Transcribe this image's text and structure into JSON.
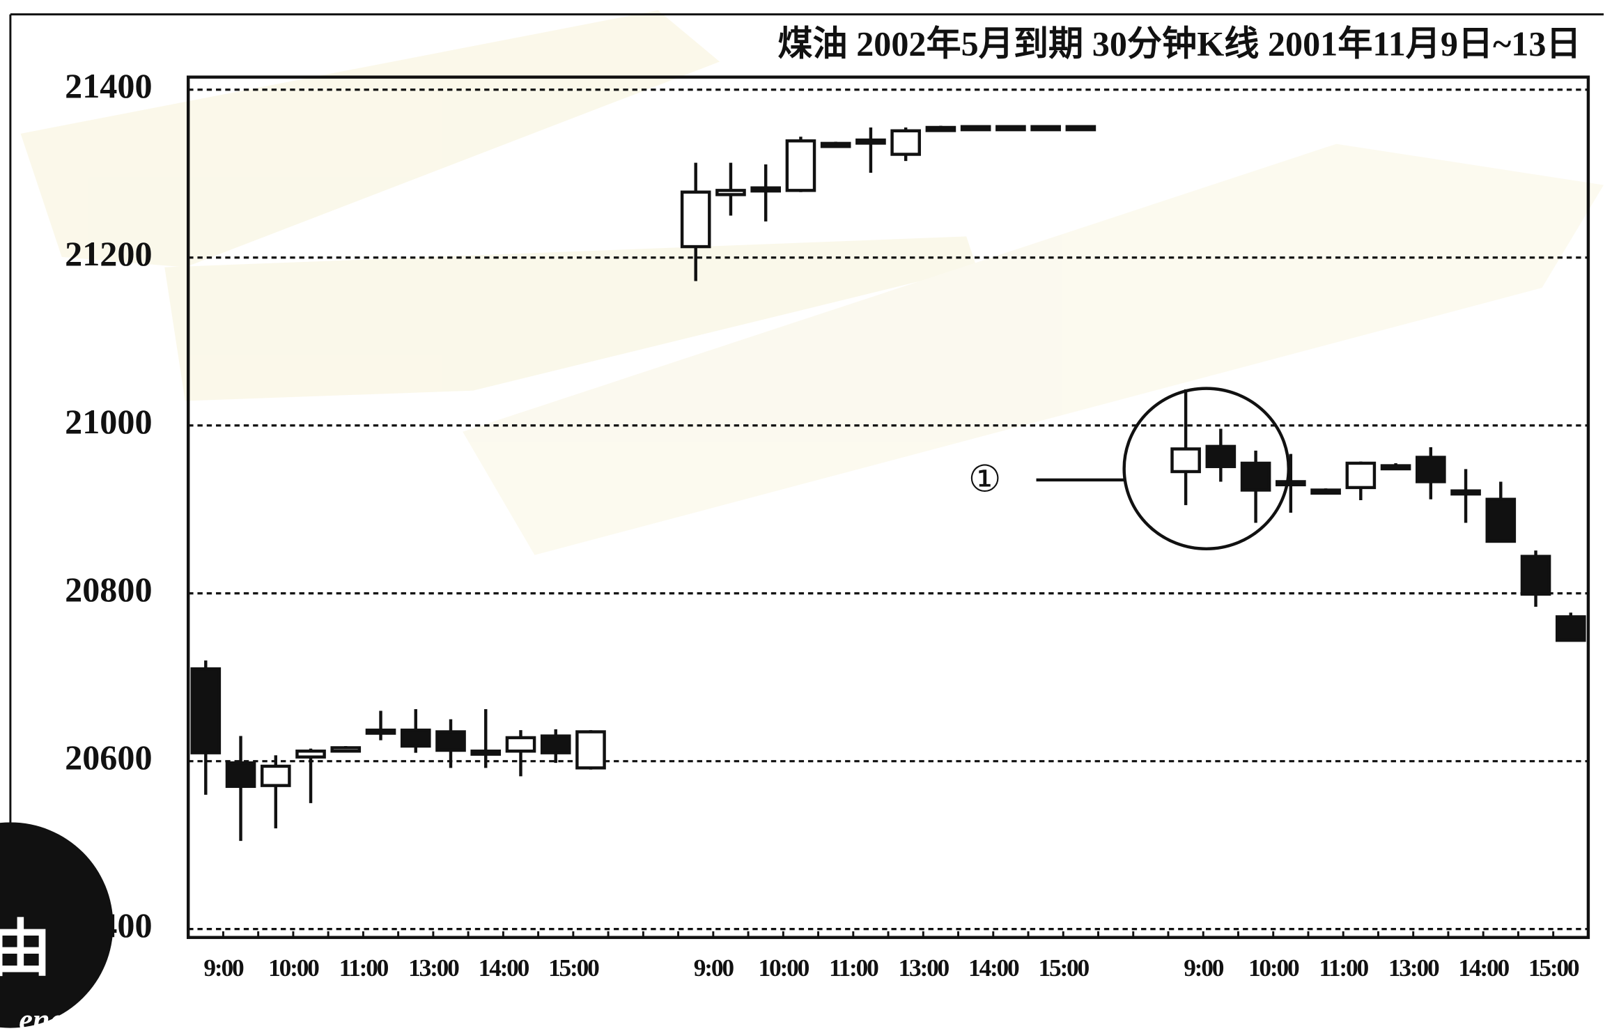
{
  "chart_data": {
    "type": "candlestick",
    "title": "煤油 2002年5月到期 30分钟K线 2001年11月9日~13日",
    "categories": [
      "9:00",
      null,
      "10:00",
      null,
      "11:00",
      null,
      "13:00",
      null,
      "14:00",
      null,
      "15:00",
      null,
      null,
      null,
      "9:00",
      null,
      "10:00",
      null,
      "11:00",
      null,
      "13:00",
      null,
      "14:00",
      null,
      "15:00",
      null,
      null,
      null,
      "9:00",
      null,
      "10:00",
      null,
      "11:00",
      null,
      "13:00",
      null,
      "14:00",
      null,
      "15:00",
      null
    ],
    "open": [
      20710,
      20598,
      20571,
      20605,
      20612,
      20635,
      20637,
      20635,
      20612,
      20612,
      20630,
      20592,
      null,
      null,
      21213,
      21275,
      21280,
      21280,
      21335,
      21338,
      21323,
      21354,
      21356,
      21356,
      21356,
      21356,
      null,
      null,
      20945,
      20975,
      20955,
      20933,
      20923,
      20926,
      20952,
      20962,
      20922,
      20912,
      20844,
      20772
    ],
    "high": [
      20720,
      20630,
      20607,
      20615,
      20618,
      20660,
      20662,
      20650,
      20662,
      20637,
      20638,
      20637,
      null,
      null,
      21313,
      21313,
      21311,
      21344,
      21338,
      21355,
      21355,
      21357,
      21357,
      21357,
      21357,
      21357,
      null,
      null,
      21043,
      20996,
      20970,
      20966,
      20925,
      20957,
      20955,
      20974,
      20948,
      20933,
      20851,
      20777
    ],
    "low": [
      20560,
      20505,
      20520,
      20550,
      20612,
      20625,
      20610,
      20592,
      20592,
      20582,
      20598,
      20590,
      null,
      null,
      21172,
      21250,
      21243,
      21278,
      21333,
      21301,
      21315,
      21353,
      21355,
      21355,
      21355,
      21355,
      null,
      null,
      20905,
      20933,
      20884,
      20896,
      20921,
      20911,
      20948,
      20912,
      20884,
      20862,
      20784,
      20744
    ],
    "close": [
      20610,
      20570,
      20594,
      20612,
      20616,
      20637,
      20618,
      20613,
      20610,
      20628,
      20610,
      20635,
      null,
      null,
      21278,
      21280,
      21283,
      21339,
      21336,
      21340,
      21351,
      21355,
      21356,
      21356,
      21356,
      21356,
      null,
      null,
      20972,
      20951,
      20923,
      20932,
      20923,
      20955,
      20951,
      20933,
      20920,
      20862,
      20799,
      20744
    ],
    "up_color": "#ffffff",
    "down_color": "#111111",
    "ylim": [
      20390,
      21415
    ],
    "yticks": [
      20400,
      20600,
      20800,
      21000,
      21200,
      21400
    ],
    "grid": true,
    "annotation": {
      "text": "①",
      "index": 29
    }
  },
  "watermark": {
    "text": "由",
    "subtext": "ene"
  }
}
